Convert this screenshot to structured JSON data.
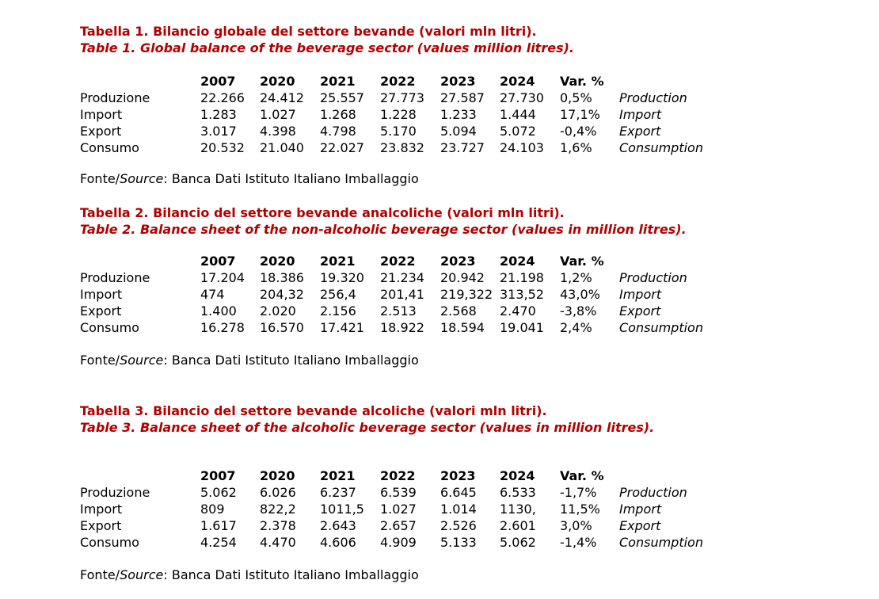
{
  "source": {
    "prefix": "Fonte/",
    "italic": "Source",
    "suffix": ": Banca Dati Istituto Italiano Imballaggio"
  },
  "header": [
    "",
    "2007",
    "2020",
    "2021",
    "2022",
    "2023",
    "2024",
    "Var. %",
    ""
  ],
  "tables": [
    {
      "title_it": "Tabella 1. Bilancio globale del settore bevande (valori mln litri).",
      "title_en": "Table 1. Global balance of the beverage sector (values million litres).",
      "rows": [
        [
          "Produzione",
          "22.266",
          "24.412",
          "25.557",
          "27.773",
          "27.587",
          "27.730",
          "0,5%",
          "Production"
        ],
        [
          "Import",
          "1.283",
          "1.027",
          "1.268",
          "1.228",
          "1.233",
          "1.444",
          "17,1%",
          "Import"
        ],
        [
          "Export",
          "3.017",
          "4.398",
          "4.798",
          "5.170",
          "5.094",
          "5.072",
          "-0,4%",
          "Export"
        ],
        [
          "Consumo",
          "20.532",
          "21.040",
          "22.027",
          "23.832",
          "23.727",
          "24.103",
          "1,6%",
          "Consumption"
        ]
      ]
    },
    {
      "title_it": "Tabella 2. Bilancio del settore bevande analcoliche (valori mln litri).",
      "title_en": "Table 2. Balance sheet of the non-alcoholic beverage sector (values in million litres).",
      "rows": [
        [
          "Produzione",
          "17.204",
          "18.386",
          "19.320",
          "21.234",
          "20.942",
          "21.198",
          "1,2%",
          "Production"
        ],
        [
          "Import",
          "474",
          "204,32",
          "256,4",
          "201,41",
          "219,322",
          "313,52",
          "43,0%",
          "Import"
        ],
        [
          "Export",
          "1.400",
          "2.020",
          "2.156",
          "2.513",
          "2.568",
          "2.470",
          "-3,8%",
          "Export"
        ],
        [
          "Consumo",
          "16.278",
          "16.570",
          "17.421",
          "18.922",
          "18.594",
          "19.041",
          "2,4%",
          "Consumption"
        ]
      ]
    },
    {
      "title_it": "Tabella 3. Bilancio del settore bevande alcoliche (valori mln litri).",
      "title_en": "Table 3. Balance sheet of the alcoholic beverage sector (values in million litres).",
      "rows": [
        [
          "Produzione",
          "5.062",
          "6.026",
          "6.237",
          "6.539",
          "6.645",
          "6.533",
          "-1,7%",
          "Production"
        ],
        [
          "Import",
          "809",
          "822,2",
          "1011,5",
          "1.027",
          "1.014",
          "1130,",
          "11,5%",
          "Import"
        ],
        [
          "Export",
          "1.617",
          "2.378",
          "2.643",
          "2.657",
          "2.526",
          "2.601",
          "3,0%",
          "Export"
        ],
        [
          "Consumo",
          "4.254",
          "4.470",
          "4.606",
          "4.909",
          "5.133",
          "5.062",
          "-1,4%",
          "Consumption"
        ]
      ]
    }
  ]
}
